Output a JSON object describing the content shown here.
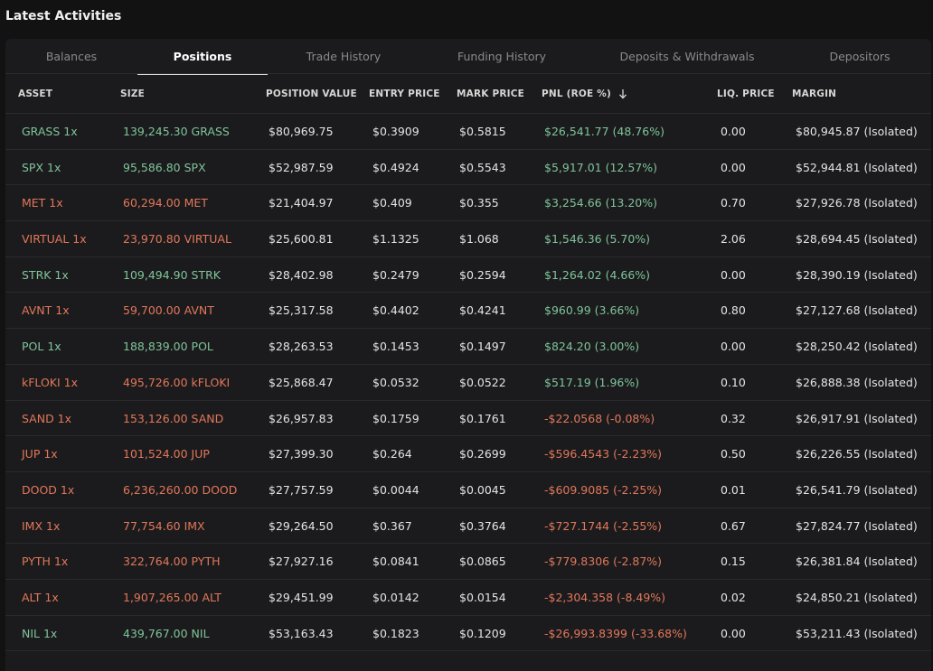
{
  "section": {
    "title": "Latest Activities"
  },
  "tabs": [
    {
      "label": "Balances",
      "active": false
    },
    {
      "label": "Positions",
      "active": true
    },
    {
      "label": "Trade History",
      "active": false
    },
    {
      "label": "Funding History",
      "active": false
    },
    {
      "label": "Deposits & Withdrawals",
      "active": false
    },
    {
      "label": "Depositors",
      "active": false
    }
  ],
  "columns": {
    "asset": "ASSET",
    "size": "SIZE",
    "position_value": "POSITION VALUE",
    "entry_price": "ENTRY PRICE",
    "mark_price": "MARK PRICE",
    "pnl": "PNL (ROE %)",
    "liq_price": "LIQ. PRICE",
    "margin": "MARGIN"
  },
  "sort": {
    "column": "pnl",
    "direction": "desc",
    "icon": "arrow-down-icon"
  },
  "colors": {
    "long": "#7fc49a",
    "short": "#e2775a"
  },
  "positions": [
    {
      "asset": "GRASS 1x",
      "side": "long",
      "size": "139,245.30 GRASS",
      "position_value": "$80,969.75",
      "entry_price": "$0.3909",
      "mark_price": "$0.5815",
      "pnl": "$26,541.77 (48.76%)",
      "pnl_sign": "pos",
      "liq_price": "0.00",
      "margin": "$80,945.87 (Isolated)"
    },
    {
      "asset": "SPX 1x",
      "side": "long",
      "size": "95,586.80 SPX",
      "position_value": "$52,987.59",
      "entry_price": "$0.4924",
      "mark_price": "$0.5543",
      "pnl": "$5,917.01 (12.57%)",
      "pnl_sign": "pos",
      "liq_price": "0.00",
      "margin": "$52,944.81 (Isolated)"
    },
    {
      "asset": "MET 1x",
      "side": "short",
      "size": "60,294.00 MET",
      "position_value": "$21,404.97",
      "entry_price": "$0.409",
      "mark_price": "$0.355",
      "pnl": "$3,254.66 (13.20%)",
      "pnl_sign": "pos",
      "liq_price": "0.70",
      "margin": "$27,926.78 (Isolated)"
    },
    {
      "asset": "VIRTUAL 1x",
      "side": "short",
      "size": "23,970.80 VIRTUAL",
      "position_value": "$25,600.81",
      "entry_price": "$1.1325",
      "mark_price": "$1.068",
      "pnl": "$1,546.36 (5.70%)",
      "pnl_sign": "pos",
      "liq_price": "2.06",
      "margin": "$28,694.45 (Isolated)"
    },
    {
      "asset": "STRK 1x",
      "side": "long",
      "size": "109,494.90 STRK",
      "position_value": "$28,402.98",
      "entry_price": "$0.2479",
      "mark_price": "$0.2594",
      "pnl": "$1,264.02 (4.66%)",
      "pnl_sign": "pos",
      "liq_price": "0.00",
      "margin": "$28,390.19 (Isolated)"
    },
    {
      "asset": "AVNT 1x",
      "side": "short",
      "size": "59,700.00 AVNT",
      "position_value": "$25,317.58",
      "entry_price": "$0.4402",
      "mark_price": "$0.4241",
      "pnl": "$960.99 (3.66%)",
      "pnl_sign": "pos",
      "liq_price": "0.80",
      "margin": "$27,127.68 (Isolated)"
    },
    {
      "asset": "POL 1x",
      "side": "long",
      "size": "188,839.00 POL",
      "position_value": "$28,263.53",
      "entry_price": "$0.1453",
      "mark_price": "$0.1497",
      "pnl": "$824.20 (3.00%)",
      "pnl_sign": "pos",
      "liq_price": "0.00",
      "margin": "$28,250.42 (Isolated)"
    },
    {
      "asset": "kFLOKI 1x",
      "side": "short",
      "size": "495,726.00 kFLOKI",
      "position_value": "$25,868.47",
      "entry_price": "$0.0532",
      "mark_price": "$0.0522",
      "pnl": "$517.19 (1.96%)",
      "pnl_sign": "pos",
      "liq_price": "0.10",
      "margin": "$26,888.38 (Isolated)"
    },
    {
      "asset": "SAND 1x",
      "side": "short",
      "size": "153,126.00 SAND",
      "position_value": "$26,957.83",
      "entry_price": "$0.1759",
      "mark_price": "$0.1761",
      "pnl": "-$22.0568 (-0.08%)",
      "pnl_sign": "neg",
      "liq_price": "0.32",
      "margin": "$26,917.91 (Isolated)"
    },
    {
      "asset": "JUP 1x",
      "side": "short",
      "size": "101,524.00 JUP",
      "position_value": "$27,399.30",
      "entry_price": "$0.264",
      "mark_price": "$0.2699",
      "pnl": "-$596.4543 (-2.23%)",
      "pnl_sign": "neg",
      "liq_price": "0.50",
      "margin": "$26,226.55 (Isolated)"
    },
    {
      "asset": "DOOD 1x",
      "side": "short",
      "size": "6,236,260.00 DOOD",
      "position_value": "$27,757.59",
      "entry_price": "$0.0044",
      "mark_price": "$0.0045",
      "pnl": "-$609.9085 (-2.25%)",
      "pnl_sign": "neg",
      "liq_price": "0.01",
      "margin": "$26,541.79 (Isolated)"
    },
    {
      "asset": "IMX 1x",
      "side": "short",
      "size": "77,754.60 IMX",
      "position_value": "$29,264.50",
      "entry_price": "$0.367",
      "mark_price": "$0.3764",
      "pnl": "-$727.1744 (-2.55%)",
      "pnl_sign": "neg",
      "liq_price": "0.67",
      "margin": "$27,824.77 (Isolated)"
    },
    {
      "asset": "PYTH 1x",
      "side": "short",
      "size": "322,764.00 PYTH",
      "position_value": "$27,927.16",
      "entry_price": "$0.0841",
      "mark_price": "$0.0865",
      "pnl": "-$779.8306 (-2.87%)",
      "pnl_sign": "neg",
      "liq_price": "0.15",
      "margin": "$26,381.84 (Isolated)"
    },
    {
      "asset": "ALT 1x",
      "side": "short",
      "size": "1,907,265.00 ALT",
      "position_value": "$29,451.99",
      "entry_price": "$0.0142",
      "mark_price": "$0.0154",
      "pnl": "-$2,304.358 (-8.49%)",
      "pnl_sign": "neg",
      "liq_price": "0.02",
      "margin": "$24,850.21 (Isolated)"
    },
    {
      "asset": "NIL 1x",
      "side": "long",
      "size": "439,767.00 NIL",
      "position_value": "$53,163.43",
      "entry_price": "$0.1823",
      "mark_price": "$0.1209",
      "pnl": "-$26,993.8399 (-33.68%)",
      "pnl_sign": "neg",
      "liq_price": "0.00",
      "margin": "$53,211.43 (Isolated)"
    }
  ]
}
